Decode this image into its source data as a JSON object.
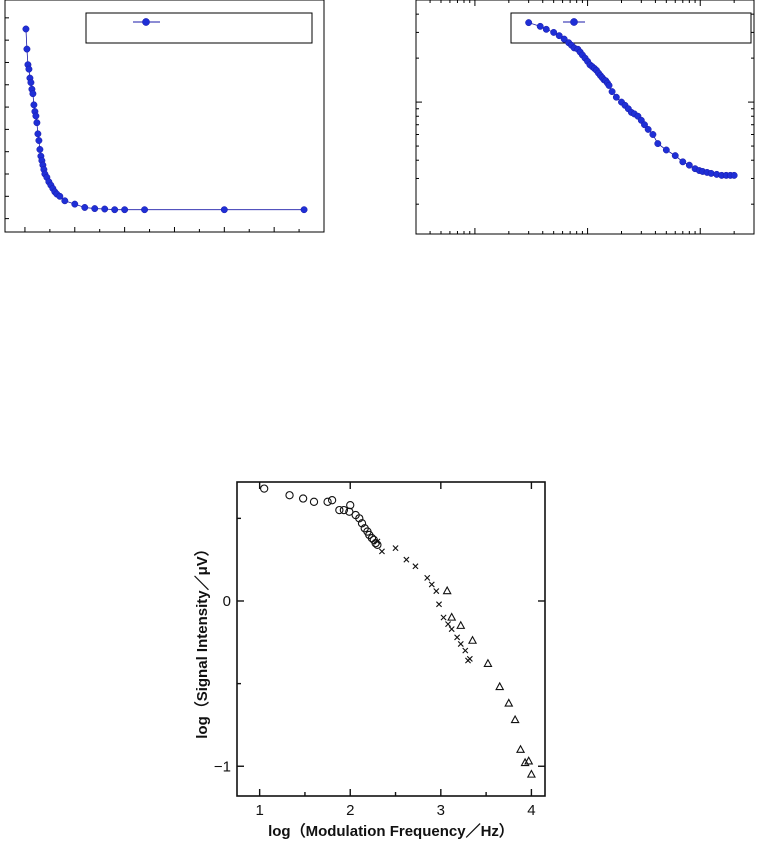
{
  "chart_data": [
    {
      "type": "line",
      "title": "",
      "xlabel": "",
      "ylabel": "",
      "legend": {
        "location": "top-right",
        "entries": [
          ""
        ]
      },
      "series": [
        {
          "name": "",
          "marker": "circle",
          "color": "#1f2fd6",
          "x": [
            0.1,
            0.2,
            0.3,
            0.4,
            0.5,
            0.6,
            0.7,
            0.8,
            0.9,
            1.0,
            1.1,
            1.2,
            1.3,
            1.4,
            1.5,
            1.6,
            1.7,
            1.8,
            1.9,
            2.0,
            2.2,
            2.4,
            2.6,
            2.8,
            3.0,
            3.2,
            3.5,
            4.0,
            5.0,
            6.0,
            7.0,
            8.0,
            9.0,
            10.0,
            12.0,
            20.0,
            28.0
          ],
          "y": [
            8.5,
            7.6,
            6.9,
            6.7,
            6.3,
            6.1,
            5.8,
            5.6,
            5.1,
            4.8,
            4.6,
            4.3,
            3.8,
            3.5,
            3.1,
            2.8,
            2.6,
            2.4,
            2.2,
            2.0,
            1.85,
            1.65,
            1.5,
            1.35,
            1.2,
            1.1,
            1.0,
            0.8,
            0.65,
            0.5,
            0.45,
            0.43,
            0.4,
            0.4,
            0.4,
            0.4,
            0.4
          ]
        }
      ],
      "xlim": [
        -2,
        30
      ],
      "ylim": [
        -0.6,
        9.8
      ],
      "grid": false
    },
    {
      "type": "line",
      "title": "",
      "xlabel": "",
      "ylabel": "",
      "xscale": "log",
      "yscale": "log",
      "legend": {
        "location": "top-right",
        "entries": [
          ""
        ]
      },
      "series": [
        {
          "name": "",
          "marker": "circle",
          "color": "#1f2fd6",
          "x": [
            300,
            380,
            430,
            500,
            560,
            620,
            680,
            720,
            760,
            820,
            860,
            900,
            950,
            1000,
            1050,
            1100,
            1150,
            1200,
            1250,
            1300,
            1350,
            1400,
            1450,
            1500,
            1550,
            1650,
            1800,
            2000,
            2150,
            2300,
            2450,
            2600,
            2800,
            3000,
            3200,
            3450,
            3800,
            4200,
            5000,
            6000,
            7000,
            8000,
            9000,
            9800,
            10500,
            11500,
            12500,
            14000,
            15500,
            17000,
            18500,
            20000
          ],
          "y": [
            3.5,
            3.3,
            3.15,
            3.0,
            2.85,
            2.7,
            2.55,
            2.45,
            2.35,
            2.3,
            2.2,
            2.1,
            2.0,
            1.9,
            1.8,
            1.75,
            1.7,
            1.65,
            1.58,
            1.52,
            1.47,
            1.42,
            1.4,
            1.35,
            1.3,
            1.18,
            1.08,
            1.0,
            0.95,
            0.9,
            0.85,
            0.83,
            0.8,
            0.75,
            0.7,
            0.65,
            0.6,
            0.52,
            0.47,
            0.43,
            0.39,
            0.37,
            0.35,
            0.34,
            0.335,
            0.33,
            0.325,
            0.32,
            0.315,
            0.315,
            0.315,
            0.315
          ]
        }
      ],
      "xlim": [
        30,
        30000
      ],
      "ylim": [
        0.125,
        5.0
      ],
      "grid": false
    },
    {
      "type": "scatter",
      "title": "",
      "xlabel": "log（Modulation Frequency／Hz）",
      "ylabel": "log（Signal Intensity／μV）",
      "xlim": [
        0.75,
        4.15
      ],
      "ylim": [
        -1.18,
        0.72
      ],
      "x_ticks": [
        1,
        2,
        3,
        4
      ],
      "y_ticks": [
        -1,
        0
      ],
      "x_tick_labels": [
        "1",
        "2",
        "3",
        "4"
      ],
      "y_tick_labels": [
        "−1",
        "0"
      ],
      "grid": false,
      "series": [
        {
          "name": "",
          "marker": "circle",
          "x": [
            1.05,
            1.33,
            1.48,
            1.6,
            1.75,
            1.8,
            1.88,
            1.93,
            1.99,
            2.0,
            2.06,
            2.1,
            2.13,
            2.16,
            2.19,
            2.21,
            2.24,
            2.26,
            2.28,
            2.3
          ],
          "y": [
            0.68,
            0.64,
            0.62,
            0.6,
            0.6,
            0.61,
            0.55,
            0.55,
            0.54,
            0.58,
            0.52,
            0.5,
            0.47,
            0.44,
            0.42,
            0.4,
            0.38,
            0.37,
            0.35,
            0.34
          ]
        },
        {
          "name": "",
          "marker": "x",
          "x": [
            2.3,
            2.35,
            2.5,
            2.62,
            2.72,
            2.85,
            2.9,
            2.95,
            2.98,
            3.03,
            3.08,
            3.12,
            3.18,
            3.22,
            3.27,
            3.3,
            3.32
          ],
          "y": [
            0.36,
            0.3,
            0.32,
            0.25,
            0.21,
            0.14,
            0.1,
            0.06,
            -0.02,
            -0.1,
            -0.14,
            -0.17,
            -0.22,
            -0.26,
            -0.3,
            -0.36,
            -0.35
          ]
        },
        {
          "name": "",
          "marker": "triangle",
          "x": [
            3.07,
            3.12,
            3.22,
            3.35,
            3.52,
            3.65,
            3.75,
            3.82,
            3.88,
            3.93,
            3.97,
            4.0
          ],
          "y": [
            0.06,
            -0.1,
            -0.15,
            -0.24,
            -0.38,
            -0.52,
            -0.62,
            -0.72,
            -0.9,
            -0.98,
            -0.97,
            -1.05
          ]
        }
      ]
    }
  ]
}
